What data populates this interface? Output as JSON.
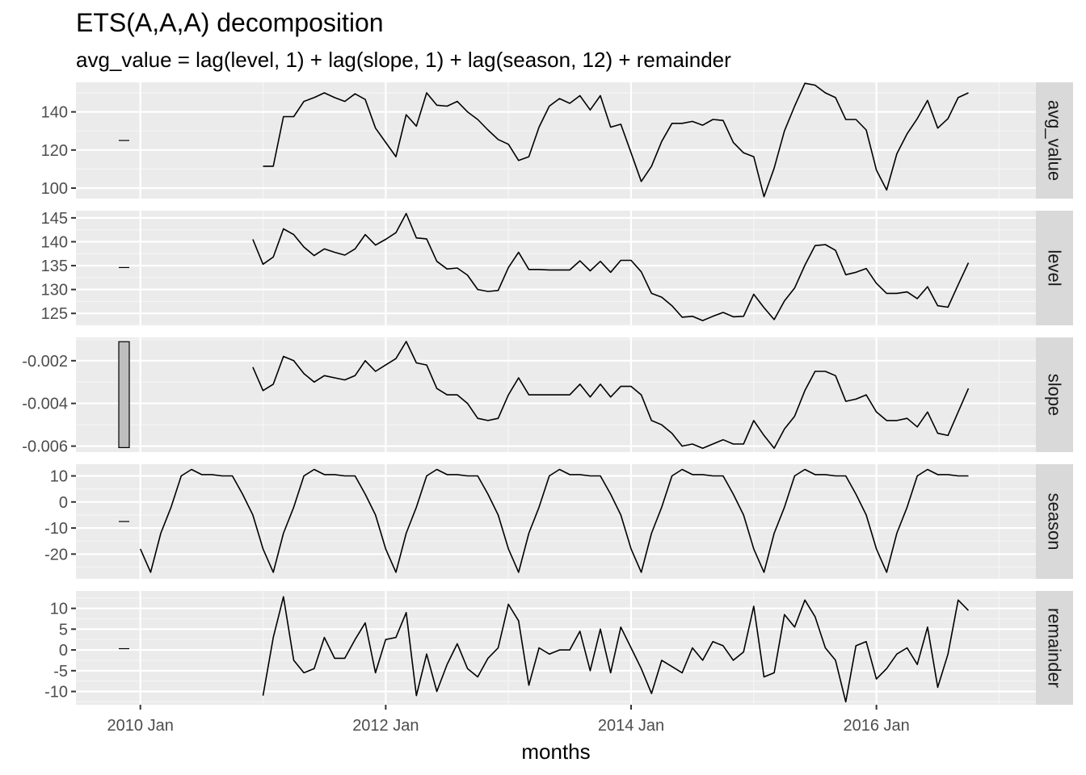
{
  "chart_data": {
    "type": "line",
    "title": "ETS(A,A,A) decomposition",
    "subtitle": "avg_value = lag(level, 1) + lag(slope, 1) + lag(season, 12) + remainder",
    "xlabel": "months",
    "ylabel": "",
    "x_ticks": [
      "2010 Jan",
      "2012 Jan",
      "2014 Jan",
      "2016 Jan"
    ],
    "x_start": "2010-01",
    "x_range_months": [
      -6.3,
      87.6
    ],
    "panels": [
      {
        "name": "avg_value",
        "ylim": [
          94.5,
          155.5
        ],
        "yticks": [
          100,
          120,
          140
        ],
        "scale_bar": [
          125.0,
          125.0
        ],
        "start_month": 12,
        "values": [
          111.5,
          111.5,
          137.5,
          137.5,
          145.5,
          147.5,
          150.0,
          147.5,
          145.5,
          149.5,
          146.5,
          131.5,
          124.0,
          116.5,
          138.5,
          132.5,
          150.0,
          143.5,
          143.0,
          145.5,
          140.0,
          136.0,
          130.5,
          125.5,
          123.0,
          114.5,
          116.5,
          132.0,
          143.0,
          147.0,
          144.5,
          148.5,
          141.0,
          148.5,
          132.0,
          133.5,
          118.5,
          103.5,
          111.5,
          124.5,
          134.0,
          134.0,
          135.0,
          133.0,
          136.0,
          135.5,
          124.0,
          118.5,
          116.5,
          95.5,
          110.5,
          130.0,
          143.0,
          155.0,
          154.0,
          150.0,
          147.5,
          136.0,
          136.0,
          130.5,
          109.5,
          99.0,
          118.0,
          128.5,
          136.5,
          146.0,
          131.5,
          136.5,
          147.5,
          150.0
        ]
      },
      {
        "name": "level",
        "ylim": [
          122.5,
          146.5
        ],
        "yticks": [
          125,
          130,
          135,
          140,
          145
        ],
        "scale_bar": [
          134.6,
          134.6
        ],
        "start_month": 11,
        "values": [
          140.5,
          135.3,
          136.8,
          142.7,
          141.5,
          138.9,
          137.1,
          138.5,
          137.8,
          137.2,
          138.5,
          141.5,
          139.3,
          140.5,
          141.9,
          145.9,
          140.8,
          140.6,
          135.9,
          134.3,
          134.5,
          133.0,
          130.0,
          129.6,
          129.8,
          134.6,
          137.8,
          134.2,
          134.2,
          134.1,
          134.1,
          134.1,
          136.0,
          133.9,
          135.9,
          133.6,
          136.1,
          136.1,
          133.7,
          129.2,
          128.4,
          126.6,
          124.2,
          124.4,
          123.5,
          124.4,
          125.2,
          124.3,
          124.4,
          129.0,
          126.2,
          123.7,
          127.6,
          130.3,
          135.1,
          139.2,
          139.4,
          138.2,
          133.1,
          133.6,
          134.4,
          131.3,
          129.2,
          129.2,
          129.5,
          128.1,
          130.6,
          126.6,
          126.3,
          131.0,
          135.6
        ]
      },
      {
        "name": "slope",
        "ylim": [
          -0.00628,
          -0.00091
        ],
        "yticks": [
          -0.006,
          -0.004,
          -0.002
        ],
        "scale_bar": [
          -0.00607,
          -0.00111
        ],
        "start_month": 11,
        "values": [
          -0.0023,
          -0.0034,
          -0.0031,
          -0.0018,
          -0.002,
          -0.0026,
          -0.003,
          -0.0027,
          -0.0028,
          -0.0029,
          -0.0027,
          -0.002,
          -0.0025,
          -0.0022,
          -0.0019,
          -0.0011,
          -0.0021,
          -0.0022,
          -0.0033,
          -0.0036,
          -0.0036,
          -0.004,
          -0.0047,
          -0.0048,
          -0.0047,
          -0.0036,
          -0.0028,
          -0.0036,
          -0.0036,
          -0.0036,
          -0.0036,
          -0.0036,
          -0.0031,
          -0.0037,
          -0.0031,
          -0.0037,
          -0.0032,
          -0.0032,
          -0.0036,
          -0.0048,
          -0.005,
          -0.0054,
          -0.006,
          -0.0059,
          -0.0061,
          -0.0059,
          -0.0057,
          -0.0059,
          -0.0059,
          -0.0048,
          -0.0055,
          -0.0061,
          -0.0052,
          -0.0046,
          -0.0034,
          -0.0025,
          -0.0025,
          -0.0027,
          -0.0039,
          -0.0038,
          -0.0036,
          -0.0044,
          -0.0048,
          -0.0048,
          -0.0047,
          -0.0051,
          -0.0044,
          -0.0054,
          -0.0055,
          -0.0044,
          -0.0033
        ]
      },
      {
        "name": "season",
        "ylim": [
          -29.5,
          14.5
        ],
        "yticks": [
          -20,
          -10,
          0,
          10
        ],
        "scale_bar": [
          -7.5,
          -7.5
        ],
        "start_month": 0,
        "values": [
          -18.0,
          -27.0,
          -12.0,
          -2.0,
          10.0,
          12.5,
          10.5,
          10.5,
          10.0,
          10.0,
          3.0,
          -5.0,
          -18.0,
          -27.0,
          -12.0,
          -2.0,
          10.0,
          12.5,
          10.5,
          10.5,
          10.0,
          10.0,
          3.0,
          -5.0,
          -18.0,
          -27.0,
          -12.0,
          -2.0,
          10.0,
          12.5,
          10.5,
          10.5,
          10.0,
          10.0,
          3.0,
          -5.0,
          -18.0,
          -27.0,
          -12.0,
          -2.0,
          10.0,
          12.5,
          10.5,
          10.5,
          10.0,
          10.0,
          3.0,
          -5.0,
          -18.0,
          -27.0,
          -12.0,
          -2.0,
          10.0,
          12.5,
          10.5,
          10.5,
          10.0,
          10.0,
          3.0,
          -5.0,
          -18.0,
          -27.0,
          -12.0,
          -2.0,
          10.0,
          12.5,
          10.5,
          10.5,
          10.0,
          10.0,
          3.0,
          -5.0,
          -18.0,
          -27.0,
          -12.0,
          -2.0,
          10.0,
          12.5,
          10.5,
          10.5,
          10.0,
          10.0
        ]
      },
      {
        "name": "remainder",
        "ylim": [
          -13.2,
          14.2
        ],
        "yticks": [
          -10,
          -5,
          0,
          5,
          10
        ],
        "scale_bar": [
          0.3,
          0.3
        ],
        "start_month": 12,
        "values": [
          -11.0,
          3.0,
          12.8,
          -2.5,
          -5.5,
          -4.5,
          3.0,
          -2.0,
          -2.0,
          2.5,
          6.5,
          -5.5,
          2.5,
          3.0,
          9.0,
          -11.0,
          -1.0,
          -10.0,
          -3.5,
          1.5,
          -4.5,
          -6.5,
          -2.0,
          0.5,
          11.0,
          7.0,
          -8.5,
          0.5,
          -1.0,
          0.0,
          0.0,
          4.5,
          -5.0,
          5.0,
          -5.5,
          5.5,
          0.5,
          -4.5,
          -10.5,
          -2.5,
          -4.0,
          -5.5,
          0.5,
          -2.5,
          2.0,
          1.0,
          -2.5,
          -0.5,
          10.5,
          -6.5,
          -5.5,
          8.5,
          5.5,
          12.0,
          8.0,
          0.5,
          -2.5,
          -12.5,
          1.0,
          2.0,
          -7.0,
          -4.5,
          -1.0,
          0.5,
          -3.5,
          5.5,
          -9.0,
          -1.0,
          12.0,
          9.5
        ]
      }
    ]
  }
}
